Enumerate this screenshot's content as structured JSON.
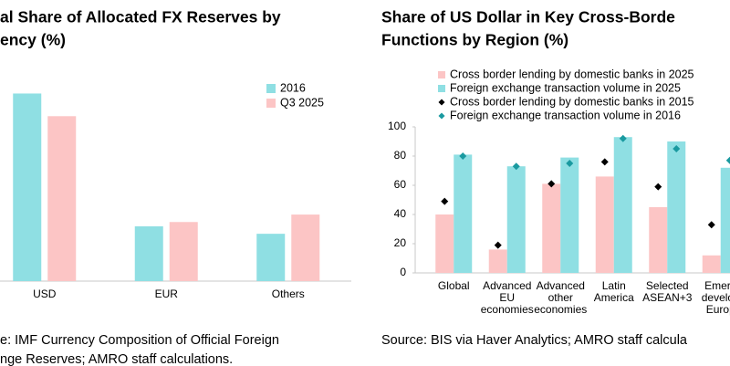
{
  "chart_data": [
    {
      "type": "bar",
      "title": [
        "al Share of Allocated FX Reserves by",
        "ency (%)"
      ],
      "categories": [
        "USD",
        "EUR",
        "Others"
      ],
      "series": [
        {
          "name": "2016",
          "color": "#8fdfe3",
          "values": [
            65.4,
            19.1,
            16.5
          ]
        },
        {
          "name": "Q3 2025",
          "color": "#fcc5c5",
          "values": [
            57.5,
            20.6,
            23.2
          ]
        }
      ],
      "ylim": [
        0,
        70
      ],
      "source": [
        "e: IMF Currency Composition of Official Foreign",
        "nge Reserves; AMRO staff calculations."
      ]
    },
    {
      "type": "bar",
      "title": [
        "Share of US Dollar in Key Cross-Borde",
        "Functions by Region (%)"
      ],
      "categories": [
        [
          "Global"
        ],
        [
          "Advanced",
          "EU",
          "economies"
        ],
        [
          "Advanced",
          "other",
          "economies"
        ],
        [
          "Latin",
          "America"
        ],
        [
          "Selected",
          "ASEAN+3"
        ],
        [
          "Emerg",
          "develop",
          "Europ"
        ]
      ],
      "series": [
        {
          "name": "Cross border lending by domestic banks in 2025",
          "color": "#fcc5c5",
          "marker": "bar",
          "values": [
            40,
            16,
            61,
            66,
            45,
            12
          ]
        },
        {
          "name": "Foreign exchange transaction volume in 2025",
          "color": "#8fdfe3",
          "marker": "bar",
          "values": [
            81,
            73,
            79,
            93,
            90,
            72
          ]
        },
        {
          "name": "Cross border lending by domestic banks in 2015",
          "color": "#000000",
          "marker": "diamond",
          "values": [
            49,
            19,
            61,
            76,
            59,
            33
          ]
        },
        {
          "name": "Foreign exchange transaction volume in 2016",
          "color": "#1a9aa0",
          "marker": "diamond",
          "values": [
            80,
            73,
            75,
            92,
            85,
            77
          ]
        }
      ],
      "ylim": [
        0,
        100
      ],
      "yticks": [
        0,
        20,
        40,
        60,
        80,
        100
      ],
      "source": [
        "Source: BIS via Haver Analytics; AMRO staff calcula"
      ]
    }
  ]
}
